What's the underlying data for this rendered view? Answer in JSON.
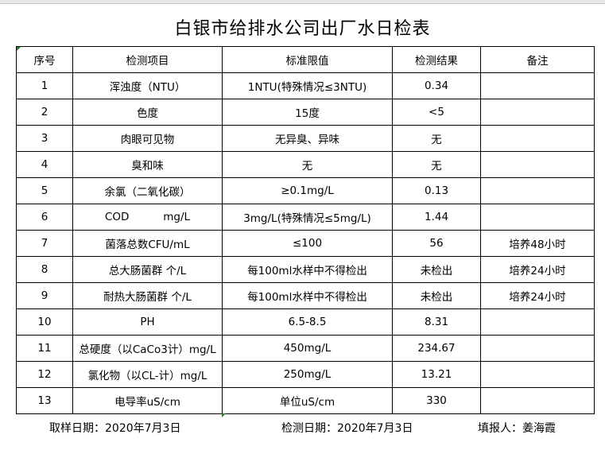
{
  "title": "白银市给排水公司出厂水日检表",
  "headers": [
    "序号",
    "检测项目",
    "标准限值",
    "检测结果",
    "备注"
  ],
  "rows": [
    [
      "1",
      "浑浊度（NTU）",
      "1NTU(特殊情况≤3NTU)",
      "0.34",
      ""
    ],
    [
      "2",
      "色度",
      "15度",
      "<5",
      ""
    ],
    [
      "3",
      "肉眼可见物",
      "无异臭、异味",
      "无",
      ""
    ],
    [
      "4",
      "臭和味",
      "无",
      "无",
      ""
    ],
    [
      "5",
      "余氯（二氧化碳）",
      "≥0.1mg/L",
      "0.13",
      ""
    ],
    [
      "6",
      "COD          mg/L",
      "3mg/L(特殊情况≤5mg/L)",
      "1.44",
      ""
    ],
    [
      "7",
      "菌落总数CFU/mL",
      "≤100",
      "56",
      "培养48小时"
    ],
    [
      "8",
      "总大肠菌群 个/L",
      "每100ml水样中不得检出",
      "未检出",
      "培养24小时"
    ],
    [
      "9",
      "耐热大肠菌群 个/L",
      "每100ml水样中不得检出",
      "未检出",
      "培养24小时"
    ],
    [
      "10",
      "PH",
      "6.5-8.5",
      "8.31",
      ""
    ],
    [
      "11",
      "总硬度（以CaCo3计）mg/L",
      "450mg/L",
      "234.67",
      ""
    ],
    [
      "12",
      "氯化物（以CL-计）mg/L",
      "250mg/L",
      "13.21",
      ""
    ],
    [
      "13",
      "电导率uS/cm",
      "单位uS/cm",
      "330",
      ""
    ]
  ],
  "footer": {
    "sampling_date": "取样日期：2020年7月3日",
    "test_date": "检测日期：2020年7月3日",
    "reporter": "填报人：姜海霞"
  }
}
